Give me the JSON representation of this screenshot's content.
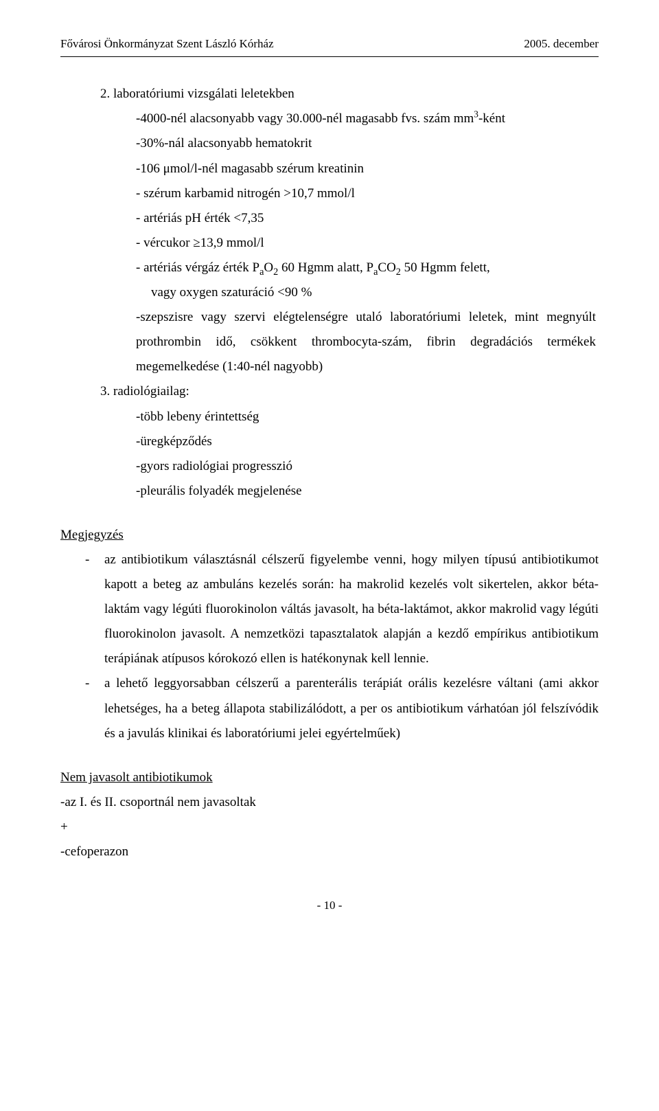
{
  "header": {
    "left": "Fővárosi Önkormányzat Szent László Kórház",
    "right": "2005. december"
  },
  "body": {
    "l1": "2. laboratóriumi vizsgálati leletekben",
    "l2_pre": "-4000-nél alacsonyabb vagy 30.000-nél magasabb fvs. szám mm",
    "l2_sup": "3",
    "l2_post": "-ként",
    "l3": "-30%-nál alacsonyabb hematokrit",
    "l4": "-106 μmol/l-nél magasabb szérum kreatinin",
    "l5": "- szérum karbamid nitrogén >10,7 mmol/l",
    "l6": "- artériás pH érték <7,35",
    "l7": "- vércukor ≥13,9 mmol/l",
    "l8_a": " - artériás vérgáz érték P",
    "l8_b": "a",
    "l8_c": "O",
    "l8_d": "2",
    "l8_e": " 60 Hgmm alatt, P",
    "l8_f": "a",
    "l8_g": "CO",
    "l8_h": "2",
    "l8_i": " 50 Hgmm felett,",
    "l9": "vagy oxygen szaturáció <90 %",
    "l10": "-szepszisre vagy szervi elégtelenségre utaló laboratóriumi leletek, mint megnyúlt prothrombin idő, csökkent thrombocyta-szám, fibrin degradációs termékek megemelkedése (1:40-nél nagyobb)",
    "l11": "3. radiológiailag:",
    "l12": "-több lebeny érintettség",
    "l13": "-üregképződés",
    "l14": "-gyors radiológiai progresszió",
    "l15": "-pleurális folyadék megjelenése",
    "note_heading": "Megjegyzés",
    "note1": "az antibiotikum választásnál célszerű figyelembe venni, hogy milyen típusú antibiotikumot kapott a beteg az ambuláns kezelés során: ha makrolid kezelés volt sikertelen, akkor béta-laktám vagy légúti fluorokinolon váltás javasolt, ha béta-laktámot, akkor makrolid vagy légúti fluorokinolon javasolt. A nemzetközi tapasztalatok alapján a kezdő empírikus antibiotikum terápiának atípusos kórokozó ellen is hatékonynak kell lennie.",
    "note2": "a lehető leggyorsabban célszerű a parenterális terápiát orális kezelésre váltani (ami akkor lehetséges, ha a beteg állapota stabilizálódott, a per os antibiotikum várhatóan jól felszívódik és a javulás klinikai és laboratóriumi jelei egyértelműek)",
    "nr_heading": "Nem javasolt antibiotikumok",
    "nr1": "-az I. és II. csoportnál nem javasoltak",
    "nr2": "+",
    "nr3": "-cefoperazon",
    "dash": "-"
  },
  "footer": {
    "page": "- 10 -"
  }
}
